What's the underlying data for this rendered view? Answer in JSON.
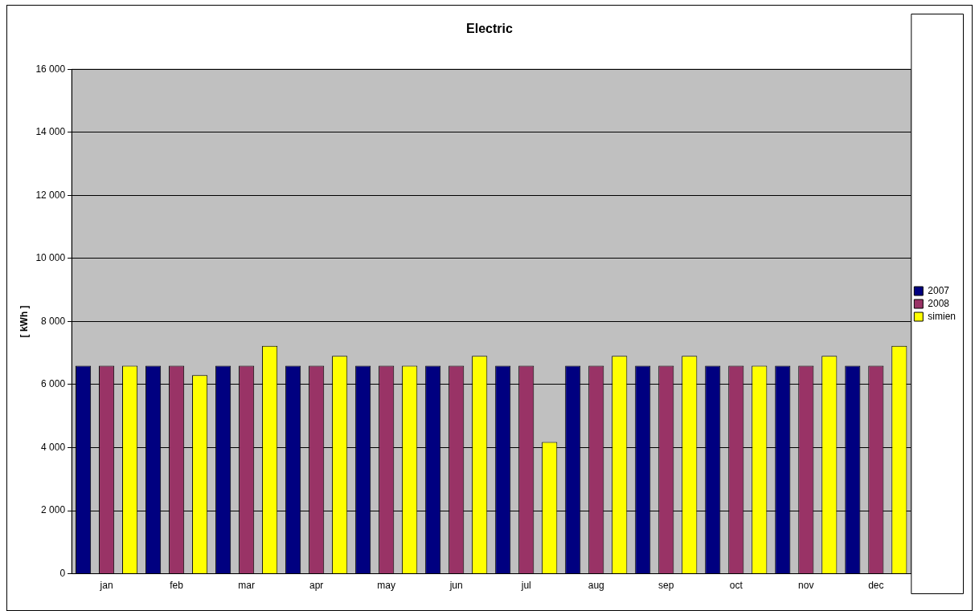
{
  "chart_data": {
    "type": "bar",
    "title": "Electric",
    "ylabel": "[ kWh ]",
    "categories": [
      "jan",
      "feb",
      "mar",
      "apr",
      "may",
      "jun",
      "jul",
      "aug",
      "sep",
      "oct",
      "nov",
      "dec"
    ],
    "series": [
      {
        "name": "2007",
        "color": "#000080",
        "values": [
          6600,
          6600,
          6600,
          6600,
          6600,
          6600,
          6600,
          6600,
          6600,
          6600,
          6600,
          6600
        ]
      },
      {
        "name": "2008",
        "color": "#993366",
        "values": [
          6600,
          6600,
          6600,
          6600,
          6600,
          6600,
          6600,
          6600,
          6600,
          6600,
          6600,
          6600
        ]
      },
      {
        "name": "simien",
        "color": "#ffff00",
        "values": [
          6600,
          6300,
          7230,
          6910,
          6600,
          6910,
          4180,
          6910,
          6910,
          6600,
          6910,
          7230
        ]
      }
    ],
    "ylim": [
      0,
      16000
    ],
    "yticks": [
      {
        "value": 0,
        "label": "0"
      },
      {
        "value": 2000,
        "label": "2 000"
      },
      {
        "value": 4000,
        "label": "4 000"
      },
      {
        "value": 6000,
        "label": "6 000"
      },
      {
        "value": 8000,
        "label": "8 000"
      },
      {
        "value": 10000,
        "label": "10 000"
      },
      {
        "value": 12000,
        "label": "12 000"
      },
      {
        "value": 14000,
        "label": "14 000"
      },
      {
        "value": 16000,
        "label": "16 000"
      }
    ],
    "grid": "y",
    "legend": "right"
  }
}
